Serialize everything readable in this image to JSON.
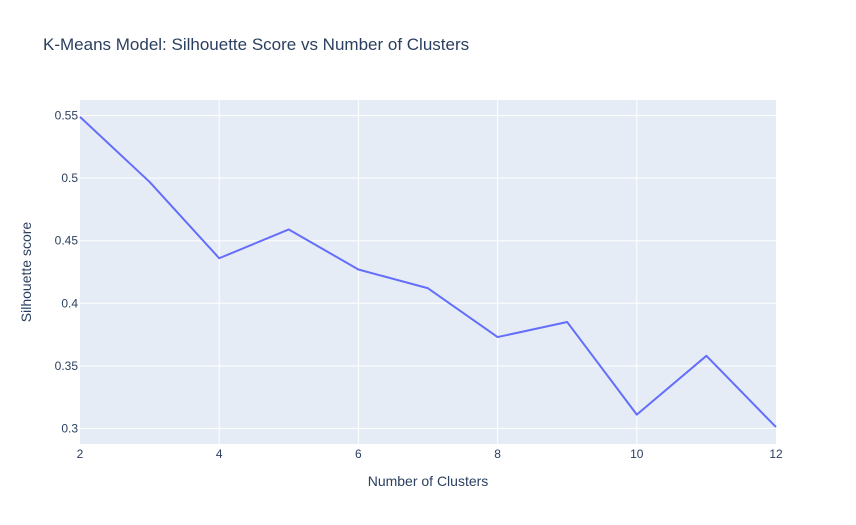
{
  "chart_data": {
    "type": "line",
    "title": "K-Means Model: Silhouette Score vs Number of Clusters",
    "xlabel": "Number of Clusters",
    "ylabel": "Silhouette score",
    "xlim": [
      2,
      12
    ],
    "ylim": [
      0.2875,
      0.5625
    ],
    "x_ticks": [
      2,
      4,
      6,
      8,
      10,
      12
    ],
    "x_tick_labels": [
      "2",
      "4",
      "6",
      "8",
      "10",
      "12"
    ],
    "y_ticks": [
      0.3,
      0.35,
      0.4,
      0.45,
      0.5,
      0.55
    ],
    "y_tick_labels": [
      "0.3",
      "0.35",
      "0.4",
      "0.45",
      "0.5",
      "0.55"
    ],
    "grid": true,
    "series": [
      {
        "x": [
          2,
          3,
          4,
          5,
          6,
          7,
          8,
          9,
          10,
          11,
          12
        ],
        "values": [
          0.549,
          0.497,
          0.436,
          0.459,
          0.427,
          0.412,
          0.373,
          0.385,
          0.311,
          0.358,
          0.301
        ],
        "color": "#636efa"
      }
    ],
    "colors": {
      "plot_background": "#e5ecf6",
      "gridline": "#ffffff",
      "text": "#2a3f5f"
    }
  }
}
